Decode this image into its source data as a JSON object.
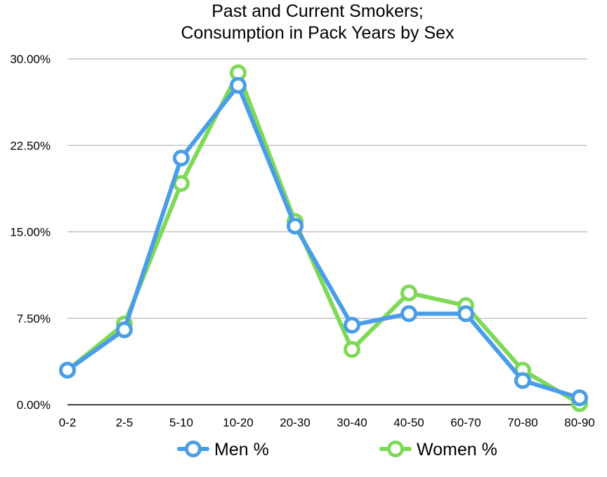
{
  "chart_data": {
    "type": "line",
    "title": "Past and Current Smokers;",
    "subtitle": "Consumption in Pack Years by Sex",
    "xlabel": "",
    "ylabel": "",
    "categories": [
      "0-2",
      "2-5",
      "5-10",
      "10-20",
      "20-30",
      "30-40",
      "40-50",
      "60-70",
      "70-80",
      "80-90"
    ],
    "y_tick_labels": [
      "0.00%",
      "7.50%",
      "15.00%",
      "22.50%",
      "30.00%"
    ],
    "y_ticks": [
      0,
      7.5,
      15,
      22.5,
      30
    ],
    "ylim": [
      0,
      30
    ],
    "grid": true,
    "legend_position": "bottom",
    "series": [
      {
        "name": "Women %",
        "color": "#7ed957",
        "values": [
          3.0,
          7.0,
          19.2,
          28.8,
          15.9,
          4.8,
          9.7,
          8.6,
          3.0,
          0.1
        ]
      },
      {
        "name": "Men %",
        "color": "#4a9de8",
        "values": [
          3.0,
          6.5,
          21.4,
          27.7,
          15.5,
          6.9,
          7.9,
          7.9,
          2.1,
          0.6
        ]
      }
    ]
  }
}
